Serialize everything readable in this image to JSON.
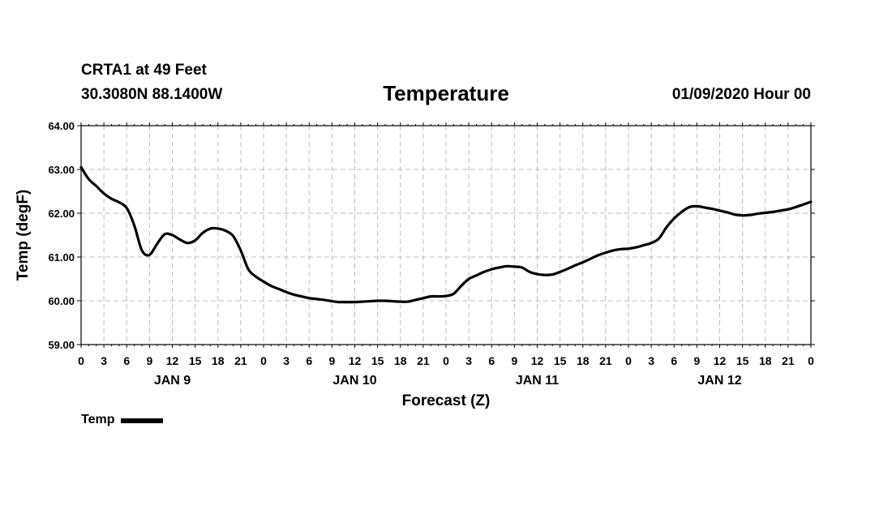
{
  "header": {
    "station": "CRTA1 at 49 Feet",
    "coords": "30.3080N 88.1400W",
    "title": "Temperature",
    "datetime": "01/09/2020 Hour 00"
  },
  "legend": {
    "label": "Temp"
  },
  "colors": {
    "line": "#000000",
    "grid": "#bbbbbb",
    "background": "#ffffff"
  },
  "chart_data": {
    "type": "line",
    "title": "Temperature",
    "xlabel": "Forecast (Z)",
    "ylabel": "Temp (degF)",
    "ylim": [
      59.0,
      64.0
    ],
    "xlim_hours": [
      0,
      96
    ],
    "yticks": [
      "59.00",
      "60.00",
      "61.00",
      "62.00",
      "63.00",
      "64.00"
    ],
    "yvalues": [
      59,
      60,
      61,
      62,
      63,
      64
    ],
    "xtick_labels": [
      "0",
      "3",
      "6",
      "9",
      "12",
      "15",
      "18",
      "21",
      "0",
      "3",
      "6",
      "9",
      "12",
      "15",
      "18",
      "21",
      "0",
      "3",
      "6",
      "9",
      "12",
      "15",
      "18",
      "21",
      "0",
      "3",
      "6",
      "9",
      "12",
      "15",
      "18",
      "21",
      "0"
    ],
    "day_labels": [
      {
        "label": "JAN 9",
        "hour": 12
      },
      {
        "label": "JAN 10",
        "hour": 36
      },
      {
        "label": "JAN 11",
        "hour": 60
      },
      {
        "label": "JAN 12",
        "hour": 84
      }
    ],
    "grid": true,
    "legend_position": "bottom-left",
    "series": [
      {
        "name": "Temp",
        "x": [
          0,
          1,
          2,
          3,
          4,
          5,
          6,
          7,
          8,
          9,
          10,
          11,
          12,
          13,
          14,
          15,
          16,
          17,
          18,
          19,
          20,
          21,
          22,
          23,
          24,
          25,
          26,
          27,
          28,
          29,
          30,
          31,
          32,
          33,
          34,
          35,
          36,
          37,
          38,
          39,
          40,
          41,
          42,
          43,
          44,
          45,
          46,
          47,
          48,
          49,
          50,
          51,
          52,
          53,
          54,
          55,
          56,
          57,
          58,
          59,
          60,
          61,
          62,
          63,
          64,
          65,
          66,
          67,
          68,
          69,
          70,
          71,
          72,
          73,
          74,
          75,
          76,
          77,
          78,
          79,
          80,
          81,
          82,
          83,
          84,
          85,
          86,
          87,
          88,
          89,
          90,
          91,
          92,
          93,
          94,
          95,
          96
        ],
        "values": [
          63.05,
          62.78,
          62.62,
          62.45,
          62.33,
          62.25,
          62.12,
          61.72,
          61.15,
          61.05,
          61.3,
          61.52,
          61.5,
          61.4,
          61.32,
          61.38,
          61.55,
          61.65,
          61.65,
          61.6,
          61.48,
          61.15,
          60.72,
          60.55,
          60.44,
          60.34,
          60.27,
          60.2,
          60.14,
          60.1,
          60.06,
          60.04,
          60.02,
          59.99,
          59.97,
          59.97,
          59.97,
          59.98,
          59.99,
          60.0,
          60.0,
          59.99,
          59.98,
          59.98,
          60.02,
          60.06,
          60.1,
          60.1,
          60.11,
          60.16,
          60.34,
          60.5,
          60.58,
          60.66,
          60.72,
          60.76,
          60.79,
          60.78,
          60.76,
          60.66,
          60.61,
          60.59,
          60.6,
          60.66,
          60.73,
          60.81,
          60.88,
          60.96,
          61.04,
          61.1,
          61.15,
          61.18,
          61.19,
          61.22,
          61.27,
          61.32,
          61.42,
          61.68,
          61.88,
          62.03,
          62.14,
          62.16,
          62.13,
          62.1,
          62.06,
          62.02,
          61.97,
          61.95,
          61.96,
          61.99,
          62.01,
          62.03,
          62.06,
          62.09,
          62.14,
          62.2,
          62.26
        ]
      }
    ]
  }
}
